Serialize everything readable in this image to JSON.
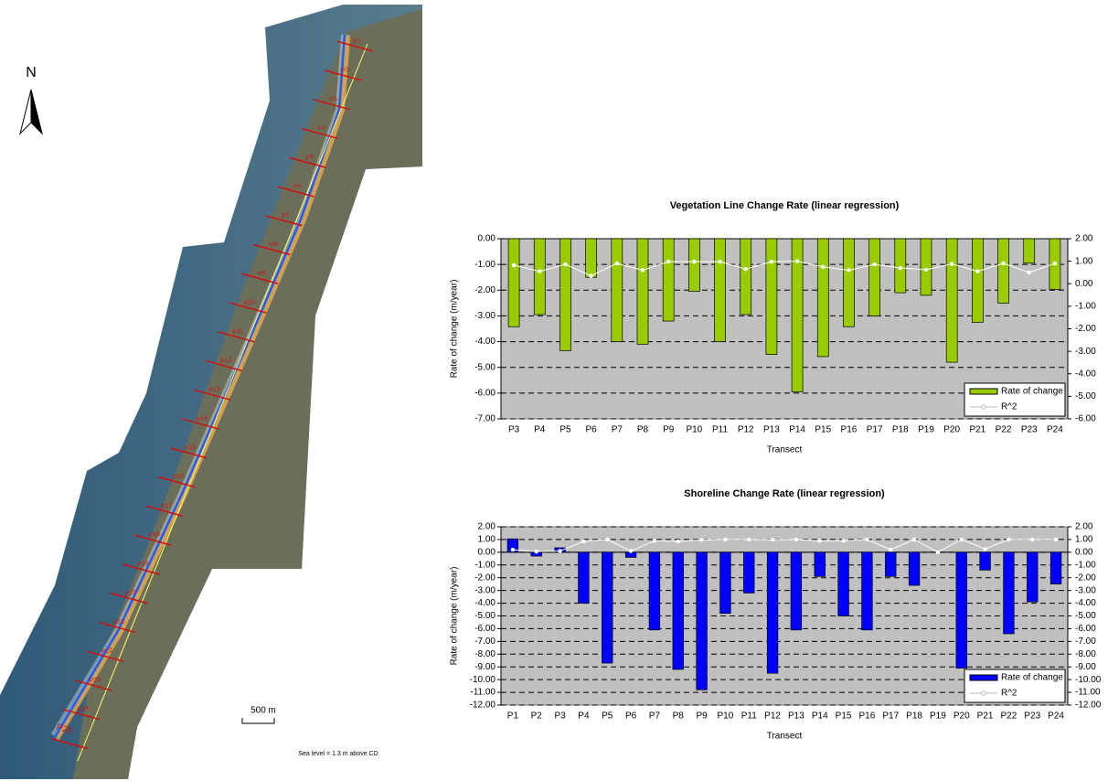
{
  "chart_data": [
    {
      "type": "bar",
      "title": "Vegetation Line Change Rate (linear regression)",
      "x_label": "Transect",
      "y_label": "Rate of change (m/year)",
      "categories": [
        "P3",
        "P4",
        "P5",
        "P6",
        "P7",
        "P8",
        "P9",
        "P10",
        "P11",
        "P12",
        "P13",
        "P14",
        "P15",
        "P16",
        "P17",
        "P18",
        "P19",
        "P20",
        "P21",
        "P22",
        "P23",
        "P24"
      ],
      "series": [
        {
          "name": "Rate of change",
          "color": "#99cc00",
          "values": [
            -3.42,
            -2.95,
            -4.35,
            -1.5,
            -4.0,
            -4.1,
            -3.2,
            -2.05,
            -4.0,
            -2.95,
            -4.5,
            -5.95,
            -4.58,
            -3.42,
            -3.0,
            -2.1,
            -2.2,
            -4.8,
            -3.25,
            -2.5,
            -0.95,
            -1.97
          ]
        },
        {
          "name": "R^2",
          "color": "#ffffff",
          "axis": "y2",
          "values": [
            0.82,
            0.55,
            0.86,
            0.35,
            0.9,
            0.6,
            0.98,
            0.98,
            0.98,
            0.65,
            0.98,
            1.0,
            0.75,
            0.6,
            0.86,
            0.7,
            0.62,
            0.88,
            0.55,
            0.9,
            0.5,
            0.9
          ]
        }
      ],
      "ylim": [
        -7,
        0
      ],
      "yticks": [
        {
          "value": 0,
          "label": "0.00"
        },
        {
          "value": -1,
          "label": "-1.00"
        },
        {
          "value": -2,
          "label": "-2.00"
        },
        {
          "value": -3,
          "label": "-3.00"
        },
        {
          "value": -4,
          "label": "-4.00"
        },
        {
          "value": -5,
          "label": "-5.00"
        },
        {
          "value": -6,
          "label": "-6.00"
        },
        {
          "value": -7,
          "label": "-7.00"
        }
      ],
      "y2lim": [
        -6,
        2
      ],
      "y2ticks": [
        {
          "value": 2,
          "label": "2.00"
        },
        {
          "value": 1,
          "label": "1.00"
        },
        {
          "value": 0,
          "label": "0.00"
        },
        {
          "value": -1,
          "label": "-1.00"
        },
        {
          "value": -2,
          "label": "-2.00"
        },
        {
          "value": -3,
          "label": "-3.00"
        },
        {
          "value": -4,
          "label": "-4.00"
        },
        {
          "value": -5,
          "label": "-5.00"
        },
        {
          "value": -6,
          "label": "-6.00"
        }
      ],
      "grid": true,
      "legend": "lower right"
    },
    {
      "type": "bar",
      "title": "Shoreline Change Rate (linear regression)",
      "x_label": "Transect",
      "y_label": "Rate of change (m/year)",
      "categories": [
        "P1",
        "P2",
        "P3",
        "P4",
        "P5",
        "P6",
        "P7",
        "P8",
        "P9",
        "P10",
        "P11",
        "P12",
        "P13",
        "P14",
        "P15",
        "P16",
        "P17",
        "P18",
        "P19",
        "P20",
        "P21",
        "P22",
        "P23",
        "P24"
      ],
      "series": [
        {
          "name": "Rate of change",
          "color": "#0000ff",
          "values": [
            1.05,
            -0.3,
            0.35,
            -4.0,
            -8.7,
            -0.4,
            -6.1,
            -9.2,
            -10.8,
            -4.8,
            -3.2,
            -9.5,
            -6.1,
            -1.9,
            -5.0,
            -6.1,
            -1.9,
            -2.6,
            0,
            -9.1,
            -1.4,
            -6.4,
            -3.9,
            -2.5
          ]
        },
        {
          "name": "R^2",
          "color": "#ffffff",
          "axis": "y2",
          "values": [
            0.2,
            0.05,
            0.1,
            0.85,
            1.0,
            0.1,
            0.9,
            0.85,
            0.97,
            1.0,
            1.0,
            0.98,
            1.0,
            0.9,
            0.9,
            1.0,
            0.2,
            1.0,
            0.0,
            1.0,
            0.25,
            1.0,
            1.0,
            1.0
          ]
        }
      ],
      "ylim": [
        -12,
        2
      ],
      "yticks": [
        {
          "value": 2,
          "label": "2.00"
        },
        {
          "value": 1,
          "label": "1.00"
        },
        {
          "value": 0,
          "label": "0.00"
        },
        {
          "value": -1,
          "label": "-1.00"
        },
        {
          "value": -2,
          "label": "-2.00"
        },
        {
          "value": -3,
          "label": "-3.00"
        },
        {
          "value": -4,
          "label": "-4.00"
        },
        {
          "value": -5,
          "label": "-5.00"
        },
        {
          "value": -6,
          "label": "-6.00"
        },
        {
          "value": -7,
          "label": "-7.00"
        },
        {
          "value": -8,
          "label": "-8.00"
        },
        {
          "value": -9,
          "label": "-9.00"
        },
        {
          "value": -10,
          "label": "-10.00"
        },
        {
          "value": -11,
          "label": "-11.00"
        },
        {
          "value": -12,
          "label": "-12.00"
        }
      ],
      "y2lim": [
        -12,
        2
      ],
      "y2ticks": [
        {
          "value": 2,
          "label": "2.00"
        },
        {
          "value": 1,
          "label": "1.00"
        },
        {
          "value": 0,
          "label": "0.00"
        },
        {
          "value": -1,
          "label": "-1.00"
        },
        {
          "value": -2,
          "label": "-2.00"
        },
        {
          "value": -3,
          "label": "-3.00"
        },
        {
          "value": -4,
          "label": "-4.00"
        },
        {
          "value": -5,
          "label": "-5.00"
        },
        {
          "value": -6,
          "label": "-6.00"
        },
        {
          "value": -7,
          "label": "-7.00"
        },
        {
          "value": -8,
          "label": "-8.00"
        },
        {
          "value": -9,
          "label": "-9.00"
        },
        {
          "value": -10,
          "label": "-10.00"
        },
        {
          "value": -11,
          "label": "-11.00"
        },
        {
          "value": -12,
          "label": "-12.00"
        }
      ],
      "grid": true,
      "legend": "lower right"
    }
  ],
  "map": {
    "north": "N",
    "scale_label": "500 m",
    "note": "Sea level = 1.3 m  above CD",
    "transects": [
      "P1",
      "P2",
      "P3",
      "P4",
      "P5",
      "P6",
      "P7",
      "P8",
      "P9",
      "P10",
      "P11",
      "P12",
      "P13",
      "P14",
      "P15",
      "P16",
      "P17",
      "P18",
      "P19",
      "P20",
      "P21",
      "P22",
      "P23",
      "P24",
      "P25"
    ]
  }
}
